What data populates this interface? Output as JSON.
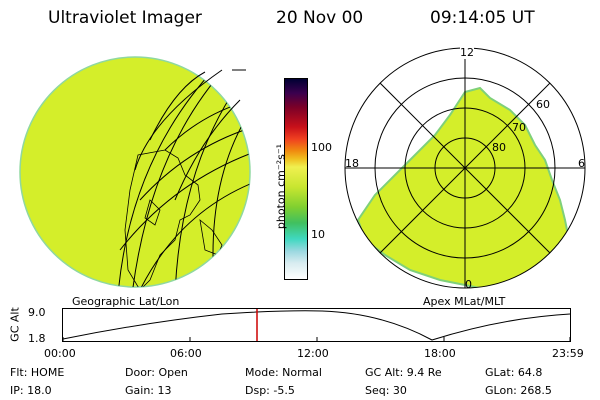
{
  "header": {
    "instrument": "Ultraviolet Imager",
    "date": "20 Nov 00",
    "time": "09:14:05 UT"
  },
  "panels": {
    "left_label": "Geographic Lat/Lon",
    "right_label": "Apex MLat/MLT"
  },
  "colorbar": {
    "unit_label": "photon cm⁻²s⁻¹",
    "ticks": [
      "100",
      "10"
    ],
    "colors": [
      "#000033",
      "#3a004e",
      "#7a0028",
      "#c8101a",
      "#f04020",
      "#f08c10",
      "#f0c020",
      "#f0f050",
      "#c8e630",
      "#80d030",
      "#40c060",
      "#40d8c0",
      "#9ad8e0",
      "#d8ecf0",
      "#ffffff"
    ]
  },
  "polar_plot": {
    "mlt_labels": {
      "top": "12",
      "left": "18",
      "right": "6",
      "bottom": "0"
    },
    "lat_labels": [
      "60",
      "70",
      "80"
    ]
  },
  "altitude_plot": {
    "ylabel": "GC Alt",
    "yticks": [
      "9.0",
      "1.8"
    ],
    "xticks": [
      "00:00",
      "06:00",
      "12:00",
      "18:00",
      "23:59"
    ],
    "current_time_marker": "09:14"
  },
  "info": {
    "flt": "Flt: HOME",
    "ip": "IP: 18.0",
    "door": "Door: Open",
    "gain": "Gain: 13",
    "mode": "Mode: Normal",
    "dsp": "Dsp:   -5.5",
    "gc_alt": "GC Alt: 9.4 Re",
    "seq": "Seq: 30",
    "glat": "GLat:  64.8",
    "glon": "GLon: 268.5"
  },
  "colors": {
    "aurora_fill": "#d4ee2a",
    "aurora_edge": "#7fd07a",
    "marker": "#cc0000"
  }
}
